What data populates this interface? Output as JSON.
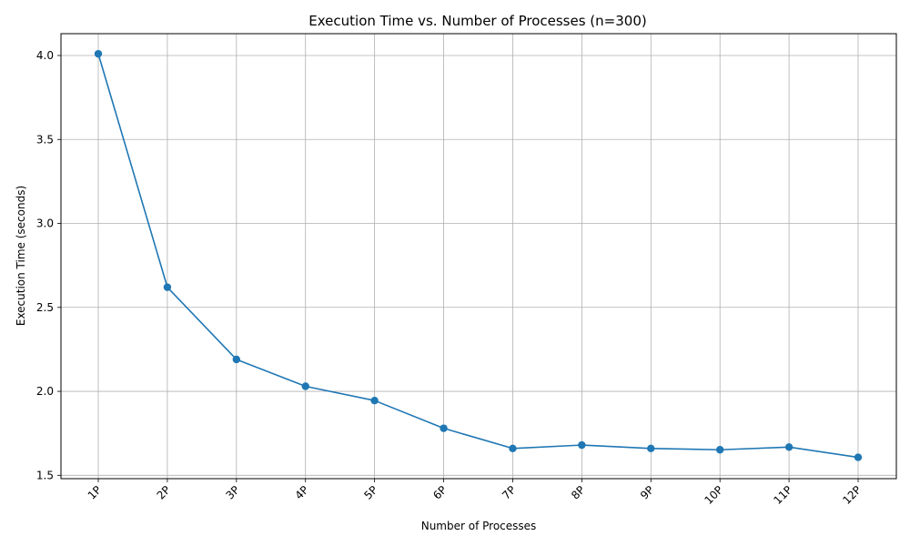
{
  "chart_data": {
    "type": "line",
    "title": "Execution Time vs. Number of Processes (n=300)",
    "xlabel": "Number of Processes",
    "ylabel": "Execution Time (seconds)",
    "categories": [
      "1P",
      "2P",
      "3P",
      "4P",
      "5P",
      "6P",
      "7P",
      "8P",
      "9P",
      "10P",
      "11P",
      "12P"
    ],
    "series": [
      {
        "values": [
          4.01,
          2.62,
          2.19,
          2.03,
          1.945,
          1.78,
          1.66,
          1.68,
          1.66,
          1.652,
          1.668,
          1.607
        ]
      }
    ],
    "ylim": [
      1.48,
      4.13
    ],
    "yticks": [
      {
        "value": 1.5,
        "label": "1.5"
      },
      {
        "value": 2.0,
        "label": "2.0"
      },
      {
        "value": 2.5,
        "label": "2.5"
      },
      {
        "value": 3.0,
        "label": "3.0"
      },
      {
        "value": 3.5,
        "label": "3.5"
      },
      {
        "value": 4.0,
        "label": "4.0"
      }
    ],
    "grid": true,
    "markers": true,
    "line_color": "#1f77b4",
    "grid_color": "#b0b0b0"
  }
}
